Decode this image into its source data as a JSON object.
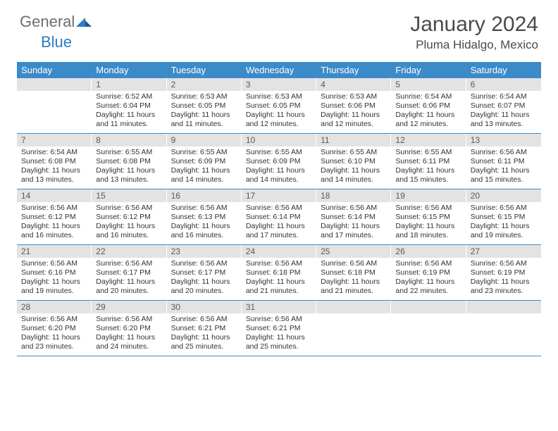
{
  "logo": {
    "text1": "General",
    "text2": "Blue"
  },
  "title": "January 2024",
  "location": "Pluma Hidalgo, Mexico",
  "colors": {
    "header_bg": "#3b8bc9",
    "header_text": "#ffffff",
    "daynum_bg": "#e3e3e3",
    "daynum_text": "#5a5a5a",
    "body_text": "#333333",
    "logo_gray": "#6d6d6d",
    "logo_blue": "#2e7cc2",
    "rule": "#3b8bc9"
  },
  "day_names": [
    "Sunday",
    "Monday",
    "Tuesday",
    "Wednesday",
    "Thursday",
    "Friday",
    "Saturday"
  ],
  "weeks": [
    [
      {
        "n": "",
        "sr": "",
        "ss": "",
        "dl": ""
      },
      {
        "n": "1",
        "sr": "Sunrise: 6:52 AM",
        "ss": "Sunset: 6:04 PM",
        "dl": "Daylight: 11 hours and 11 minutes."
      },
      {
        "n": "2",
        "sr": "Sunrise: 6:53 AM",
        "ss": "Sunset: 6:05 PM",
        "dl": "Daylight: 11 hours and 11 minutes."
      },
      {
        "n": "3",
        "sr": "Sunrise: 6:53 AM",
        "ss": "Sunset: 6:05 PM",
        "dl": "Daylight: 11 hours and 12 minutes."
      },
      {
        "n": "4",
        "sr": "Sunrise: 6:53 AM",
        "ss": "Sunset: 6:06 PM",
        "dl": "Daylight: 11 hours and 12 minutes."
      },
      {
        "n": "5",
        "sr": "Sunrise: 6:54 AM",
        "ss": "Sunset: 6:06 PM",
        "dl": "Daylight: 11 hours and 12 minutes."
      },
      {
        "n": "6",
        "sr": "Sunrise: 6:54 AM",
        "ss": "Sunset: 6:07 PM",
        "dl": "Daylight: 11 hours and 13 minutes."
      }
    ],
    [
      {
        "n": "7",
        "sr": "Sunrise: 6:54 AM",
        "ss": "Sunset: 6:08 PM",
        "dl": "Daylight: 11 hours and 13 minutes."
      },
      {
        "n": "8",
        "sr": "Sunrise: 6:55 AM",
        "ss": "Sunset: 6:08 PM",
        "dl": "Daylight: 11 hours and 13 minutes."
      },
      {
        "n": "9",
        "sr": "Sunrise: 6:55 AM",
        "ss": "Sunset: 6:09 PM",
        "dl": "Daylight: 11 hours and 14 minutes."
      },
      {
        "n": "10",
        "sr": "Sunrise: 6:55 AM",
        "ss": "Sunset: 6:09 PM",
        "dl": "Daylight: 11 hours and 14 minutes."
      },
      {
        "n": "11",
        "sr": "Sunrise: 6:55 AM",
        "ss": "Sunset: 6:10 PM",
        "dl": "Daylight: 11 hours and 14 minutes."
      },
      {
        "n": "12",
        "sr": "Sunrise: 6:55 AM",
        "ss": "Sunset: 6:11 PM",
        "dl": "Daylight: 11 hours and 15 minutes."
      },
      {
        "n": "13",
        "sr": "Sunrise: 6:56 AM",
        "ss": "Sunset: 6:11 PM",
        "dl": "Daylight: 11 hours and 15 minutes."
      }
    ],
    [
      {
        "n": "14",
        "sr": "Sunrise: 6:56 AM",
        "ss": "Sunset: 6:12 PM",
        "dl": "Daylight: 11 hours and 16 minutes."
      },
      {
        "n": "15",
        "sr": "Sunrise: 6:56 AM",
        "ss": "Sunset: 6:12 PM",
        "dl": "Daylight: 11 hours and 16 minutes."
      },
      {
        "n": "16",
        "sr": "Sunrise: 6:56 AM",
        "ss": "Sunset: 6:13 PM",
        "dl": "Daylight: 11 hours and 16 minutes."
      },
      {
        "n": "17",
        "sr": "Sunrise: 6:56 AM",
        "ss": "Sunset: 6:14 PM",
        "dl": "Daylight: 11 hours and 17 minutes."
      },
      {
        "n": "18",
        "sr": "Sunrise: 6:56 AM",
        "ss": "Sunset: 6:14 PM",
        "dl": "Daylight: 11 hours and 17 minutes."
      },
      {
        "n": "19",
        "sr": "Sunrise: 6:56 AM",
        "ss": "Sunset: 6:15 PM",
        "dl": "Daylight: 11 hours and 18 minutes."
      },
      {
        "n": "20",
        "sr": "Sunrise: 6:56 AM",
        "ss": "Sunset: 6:15 PM",
        "dl": "Daylight: 11 hours and 19 minutes."
      }
    ],
    [
      {
        "n": "21",
        "sr": "Sunrise: 6:56 AM",
        "ss": "Sunset: 6:16 PM",
        "dl": "Daylight: 11 hours and 19 minutes."
      },
      {
        "n": "22",
        "sr": "Sunrise: 6:56 AM",
        "ss": "Sunset: 6:17 PM",
        "dl": "Daylight: 11 hours and 20 minutes."
      },
      {
        "n": "23",
        "sr": "Sunrise: 6:56 AM",
        "ss": "Sunset: 6:17 PM",
        "dl": "Daylight: 11 hours and 20 minutes."
      },
      {
        "n": "24",
        "sr": "Sunrise: 6:56 AM",
        "ss": "Sunset: 6:18 PM",
        "dl": "Daylight: 11 hours and 21 minutes."
      },
      {
        "n": "25",
        "sr": "Sunrise: 6:56 AM",
        "ss": "Sunset: 6:18 PM",
        "dl": "Daylight: 11 hours and 21 minutes."
      },
      {
        "n": "26",
        "sr": "Sunrise: 6:56 AM",
        "ss": "Sunset: 6:19 PM",
        "dl": "Daylight: 11 hours and 22 minutes."
      },
      {
        "n": "27",
        "sr": "Sunrise: 6:56 AM",
        "ss": "Sunset: 6:19 PM",
        "dl": "Daylight: 11 hours and 23 minutes."
      }
    ],
    [
      {
        "n": "28",
        "sr": "Sunrise: 6:56 AM",
        "ss": "Sunset: 6:20 PM",
        "dl": "Daylight: 11 hours and 23 minutes."
      },
      {
        "n": "29",
        "sr": "Sunrise: 6:56 AM",
        "ss": "Sunset: 6:20 PM",
        "dl": "Daylight: 11 hours and 24 minutes."
      },
      {
        "n": "30",
        "sr": "Sunrise: 6:56 AM",
        "ss": "Sunset: 6:21 PM",
        "dl": "Daylight: 11 hours and 25 minutes."
      },
      {
        "n": "31",
        "sr": "Sunrise: 6:56 AM",
        "ss": "Sunset: 6:21 PM",
        "dl": "Daylight: 11 hours and 25 minutes."
      },
      {
        "n": "",
        "sr": "",
        "ss": "",
        "dl": ""
      },
      {
        "n": "",
        "sr": "",
        "ss": "",
        "dl": ""
      },
      {
        "n": "",
        "sr": "",
        "ss": "",
        "dl": ""
      }
    ]
  ]
}
